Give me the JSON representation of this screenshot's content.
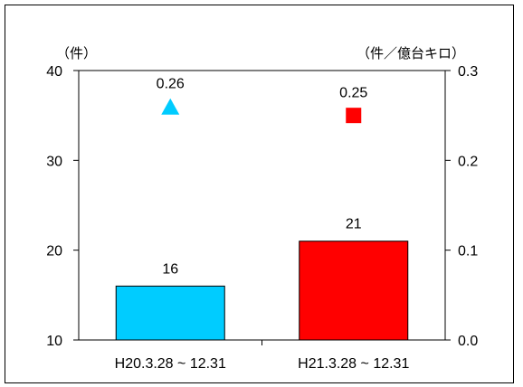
{
  "chart_data": {
    "type": "bar",
    "categories": [
      "H20.3.28 ~ 12.31",
      "H21.3.28 ~ 12.31"
    ],
    "bar_values": [
      16,
      21
    ],
    "bar_colors": [
      "#00CCFF",
      "#FF0000"
    ],
    "marker_values": [
      0.26,
      0.25
    ],
    "marker_shapes": [
      "triangle",
      "square"
    ],
    "marker_colors": [
      "#00CCFF",
      "#FF0000"
    ],
    "left_axis": {
      "unit_label": "（件）",
      "range": [
        10,
        40
      ],
      "ticks": [
        10,
        20,
        30,
        40
      ],
      "tick_labels": [
        "10",
        "20",
        "30",
        "40"
      ]
    },
    "right_axis": {
      "unit_label": "（件／億台キロ）",
      "range": [
        0,
        0.3
      ],
      "ticks": [
        0,
        0.1,
        0.2,
        0.3
      ],
      "tick_labels": [
        "0.0",
        "0.1",
        "0.2",
        "0.3"
      ]
    },
    "bar_labels": [
      "16",
      "21"
    ],
    "marker_labels": [
      "0.26",
      "0.25"
    ],
    "grid": false,
    "legend": "none"
  }
}
